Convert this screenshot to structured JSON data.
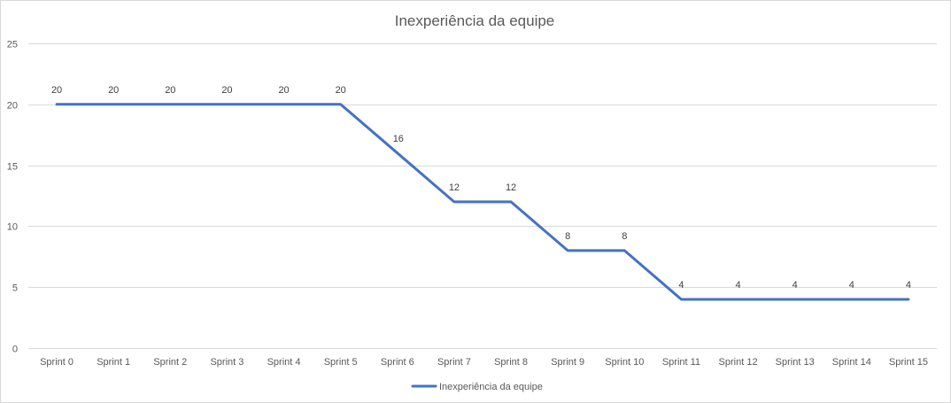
{
  "chart_data": {
    "type": "line",
    "title": "Inexperiência da equipe",
    "xlabel": "",
    "ylabel": "",
    "categories": [
      "Sprint 0",
      "Sprint 1",
      "Sprint 2",
      "Sprint 3",
      "Sprint 4",
      "Sprint 5",
      "Sprint 6",
      "Sprint 7",
      "Sprint 8",
      "Sprint 9",
      "Sprint 10",
      "Sprint 11",
      "Sprint 12",
      "Sprint 13",
      "Sprint 14",
      "Sprint 15"
    ],
    "ylim": [
      0,
      25
    ],
    "yticks": [
      0,
      5,
      10,
      15,
      20,
      25
    ],
    "grid": true,
    "legend": "bottom",
    "series": [
      {
        "name": "Inexperiência da equipe",
        "color": "#4472c4",
        "values": [
          20,
          20,
          20,
          20,
          20,
          20,
          16,
          12,
          12,
          8,
          8,
          4,
          4,
          4,
          4,
          4
        ]
      }
    ]
  }
}
